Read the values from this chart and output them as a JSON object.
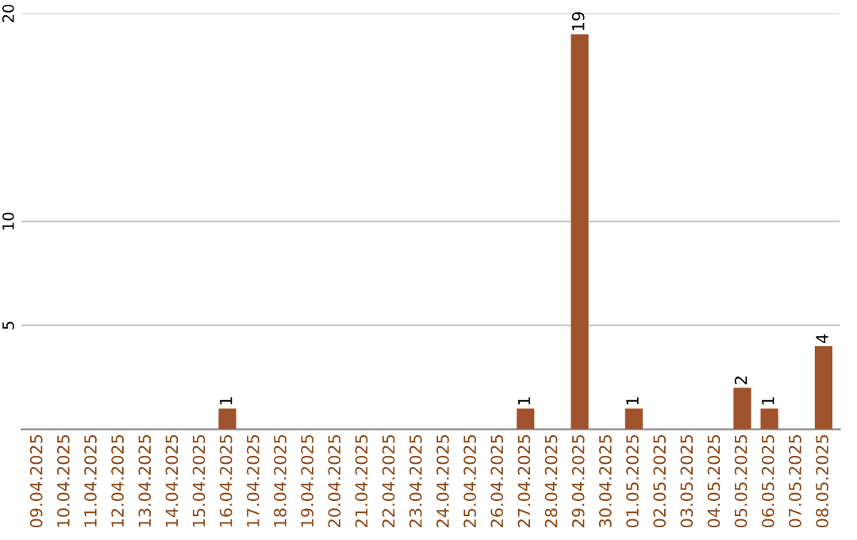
{
  "chart_data": {
    "type": "bar",
    "categories": [
      "09.04.2025",
      "10.04.2025",
      "11.04.2025",
      "12.04.2025",
      "13.04.2025",
      "14.04.2025",
      "15.04.2025",
      "16.04.2025",
      "17.04.2025",
      "18.04.2025",
      "19.04.2025",
      "20.04.2025",
      "21.04.2025",
      "22.04.2025",
      "23.04.2025",
      "24.04.2025",
      "25.04.2025",
      "26.04.2025",
      "27.04.2025",
      "28.04.2025",
      "29.04.2025",
      "30.04.2025",
      "01.05.2025",
      "02.05.2025",
      "03.05.2025",
      "04.05.2025",
      "05.05.2025",
      "06.05.2025",
      "07.05.2025",
      "08.05.2025"
    ],
    "values": [
      0,
      0,
      0,
      0,
      0,
      0,
      0,
      1,
      0,
      0,
      0,
      0,
      0,
      0,
      0,
      0,
      0,
      0,
      1,
      0,
      19,
      0,
      1,
      0,
      0,
      0,
      2,
      1,
      0,
      4
    ],
    "value_labels": [
      null,
      null,
      null,
      null,
      null,
      null,
      null,
      "1",
      null,
      null,
      null,
      null,
      null,
      null,
      null,
      null,
      null,
      null,
      "1",
      null,
      "19",
      null,
      "1",
      null,
      null,
      null,
      "2",
      "1",
      null,
      "4"
    ],
    "color": "#a0522d",
    "ylim": [
      0,
      20
    ],
    "yticks": [
      5,
      10,
      20
    ],
    "grid": "y"
  }
}
